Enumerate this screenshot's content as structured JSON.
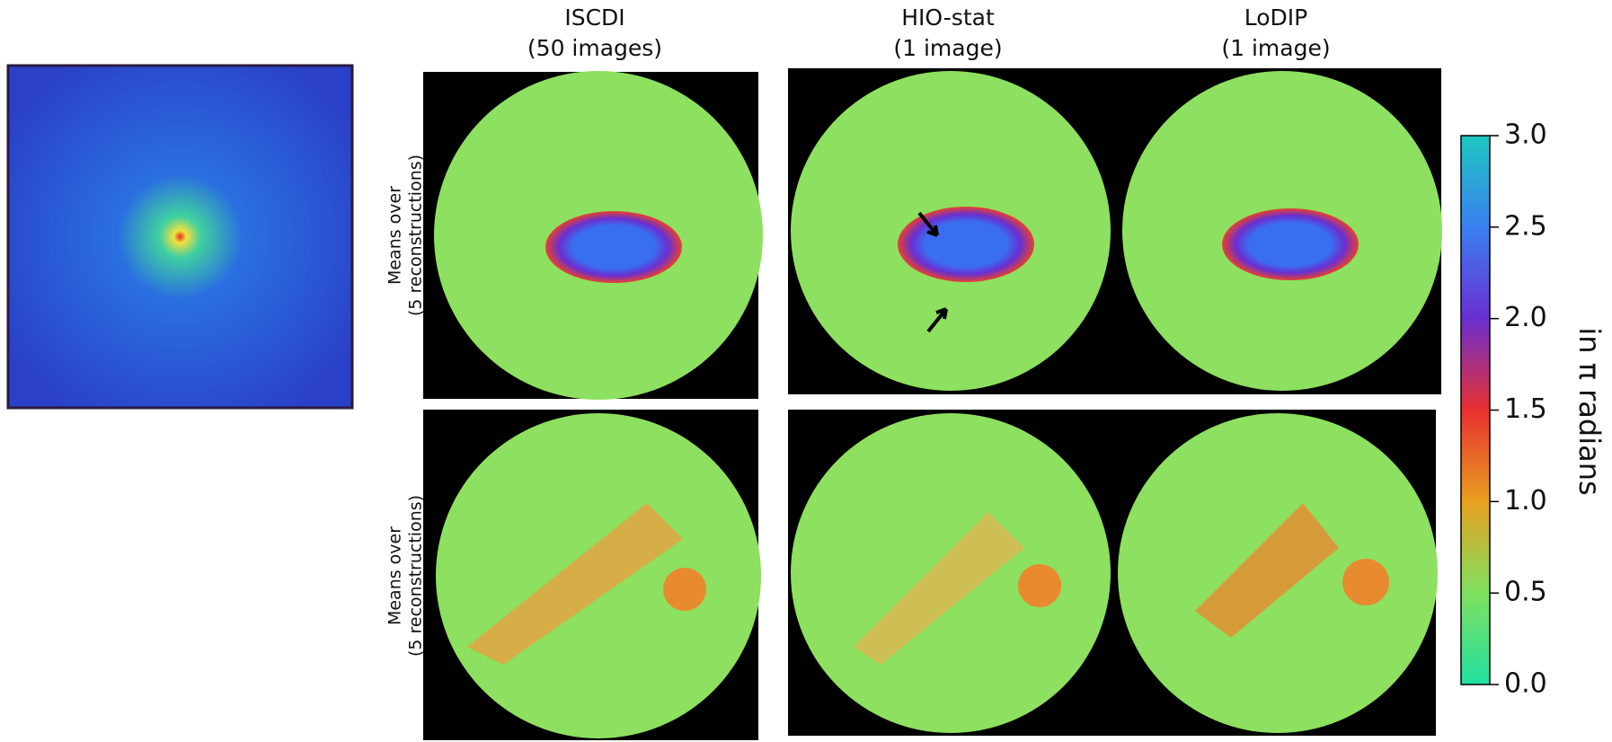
{
  "columns": [
    {
      "title": "ISCDI",
      "subtitle": "(50 images)"
    },
    {
      "title": "HIO-stat",
      "subtitle": "(1 image)"
    },
    {
      "title": "LoDIP",
      "subtitle": "(1 image)"
    }
  ],
  "rows": [
    {
      "label": "Means over",
      "sublabel": "(5 reconstructions)"
    },
    {
      "label": "Means over",
      "sublabel": "(5 reconstructions)"
    }
  ],
  "colorbar": {
    "label": "in π radians",
    "lim": [
      0,
      3
    ],
    "ticks": [
      {
        "value": 0,
        "label": "0.0"
      },
      {
        "value": 0.5,
        "label": "0.5"
      },
      {
        "value": 1,
        "label": "1.0"
      },
      {
        "value": 1.5,
        "label": "1.5"
      },
      {
        "value": 2,
        "label": "2.0"
      },
      {
        "value": 2.5,
        "label": "2.5"
      },
      {
        "value": 3,
        "label": "3.0"
      }
    ]
  }
}
